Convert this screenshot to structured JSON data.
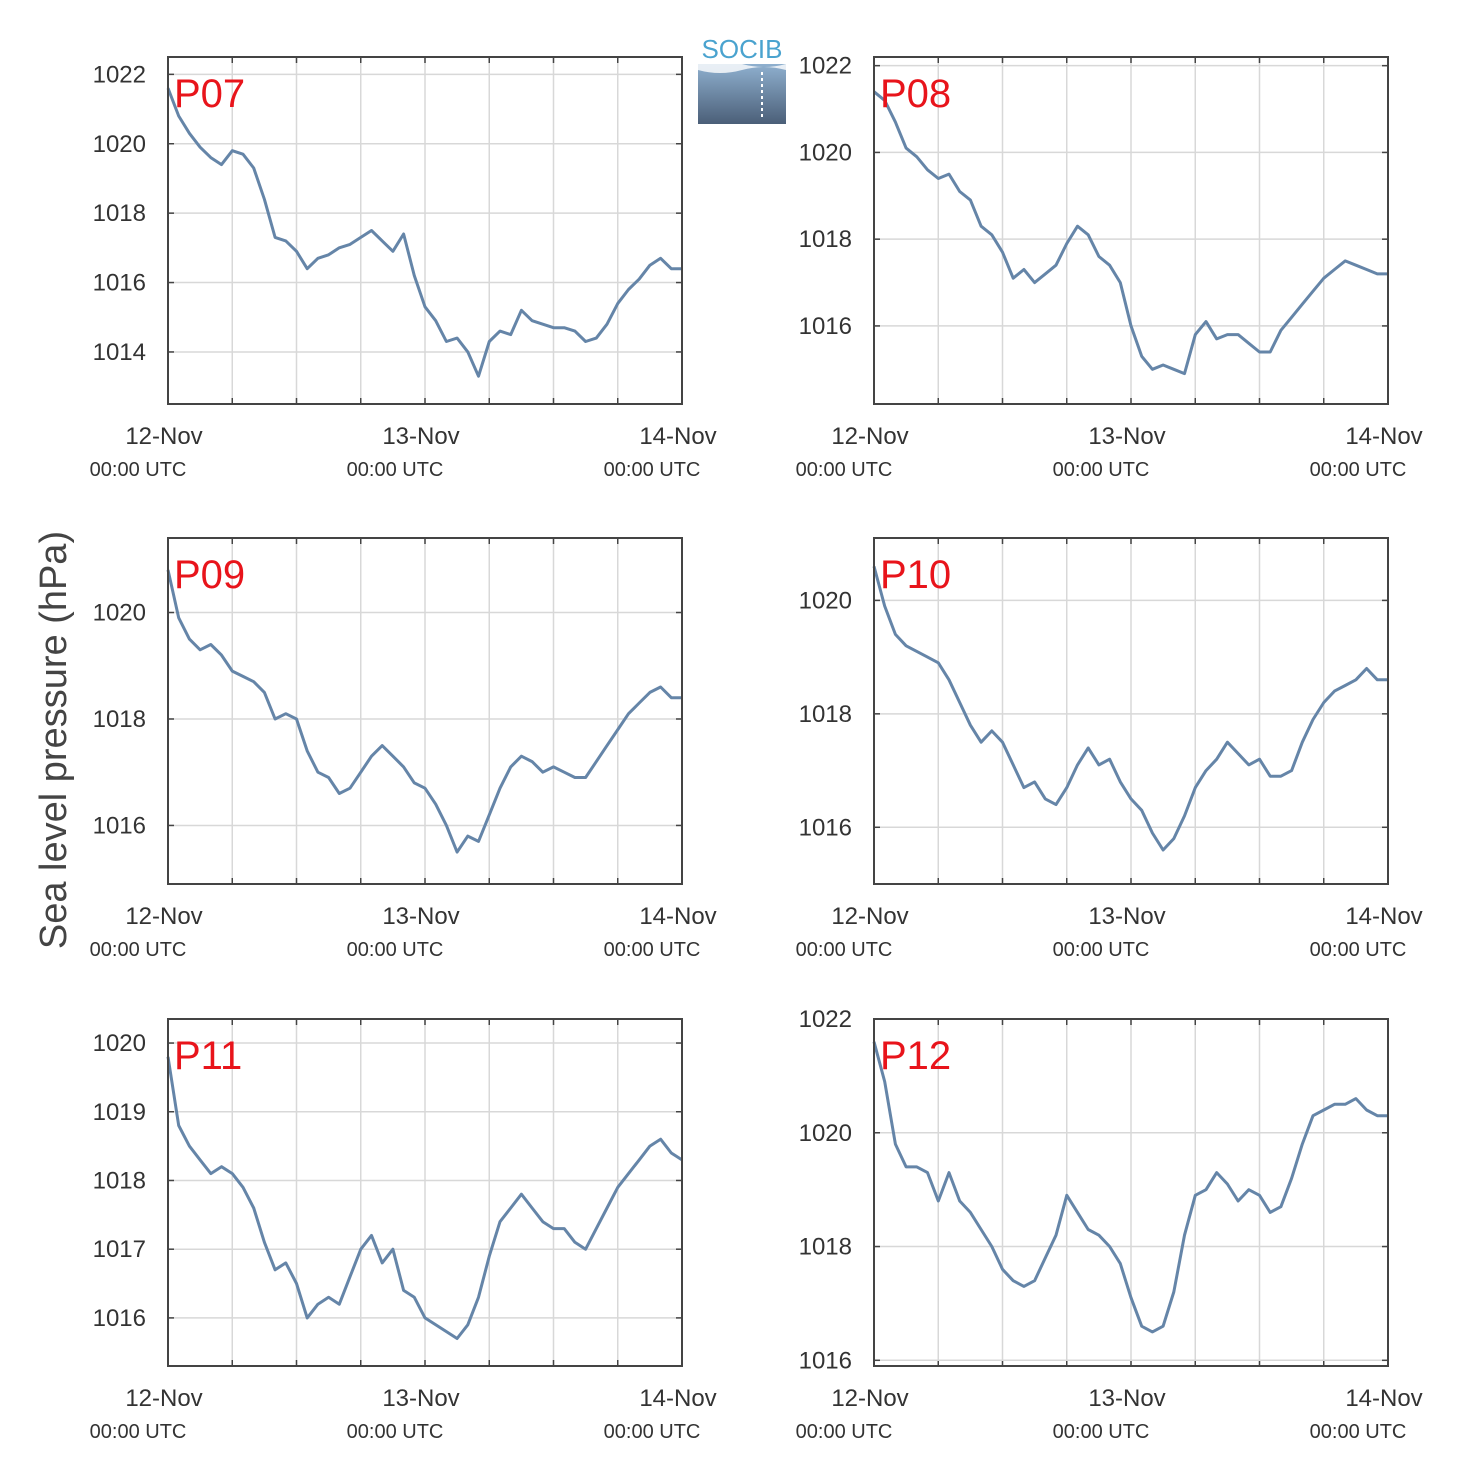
{
  "figure": {
    "ylabel": "Sea level pressure (hPa)",
    "logo_text": "SOCIB",
    "colors": {
      "line": "#6585a8",
      "panel_label": "#e8141b",
      "frame": "#444444",
      "grid": "#d8d8d8",
      "logo_text": "#4aa3cf"
    }
  },
  "chart_data": [
    {
      "type": "line",
      "title": "P07",
      "ylabel": "Sea level pressure (hPa)",
      "x_unit": "hours since 12-Nov 00:00 UTC",
      "xlim": [
        0,
        48
      ],
      "ylim": [
        1012.5,
        1022.5
      ],
      "xticks": [
        {
          "x": 0,
          "date": "12-Nov",
          "time": "00:00 UTC"
        },
        {
          "x": 24,
          "date": "13-Nov",
          "time": "00:00 UTC"
        },
        {
          "x": 48,
          "date": "14-Nov",
          "time": "00:00 UTC"
        }
      ],
      "yticks": [
        1014,
        1016,
        1018,
        1020,
        1022
      ],
      "grid": true,
      "x": [
        0,
        1,
        2,
        3,
        4,
        5,
        6,
        7,
        8,
        9,
        10,
        11,
        12,
        13,
        14,
        15,
        16,
        17,
        18,
        19,
        20,
        21,
        22,
        23,
        24,
        25,
        26,
        27,
        28,
        29,
        30,
        31,
        32,
        33,
        34,
        35,
        36,
        37,
        38,
        39,
        40,
        41,
        42,
        43,
        44,
        45,
        46,
        47,
        48
      ],
      "values": [
        1021.6,
        1020.8,
        1020.3,
        1019.9,
        1019.6,
        1019.4,
        1019.8,
        1019.7,
        1019.3,
        1018.4,
        1017.3,
        1017.2,
        1016.9,
        1016.4,
        1016.7,
        1016.8,
        1017.0,
        1017.1,
        1017.3,
        1017.5,
        1017.2,
        1016.9,
        1017.4,
        1016.2,
        1015.3,
        1014.9,
        1014.3,
        1014.4,
        1014.0,
        1013.3,
        1014.3,
        1014.6,
        1014.5,
        1015.2,
        1014.9,
        1014.8,
        1014.7,
        1014.7,
        1014.6,
        1014.3,
        1014.4,
        1014.8,
        1015.4,
        1015.8,
        1016.1,
        1016.5,
        1016.7,
        1016.4,
        1016.4
      ]
    },
    {
      "type": "line",
      "title": "P08",
      "ylabel": "Sea level pressure (hPa)",
      "x_unit": "hours since 12-Nov 00:00 UTC",
      "xlim": [
        0,
        48
      ],
      "ylim": [
        1014.2,
        1022.2
      ],
      "xticks": [
        {
          "x": 0,
          "date": "12-Nov",
          "time": "00:00 UTC"
        },
        {
          "x": 24,
          "date": "13-Nov",
          "time": "00:00 UTC"
        },
        {
          "x": 48,
          "date": "14-Nov",
          "time": "00:00 UTC"
        }
      ],
      "yticks": [
        1016,
        1018,
        1020,
        1022
      ],
      "grid": true,
      "x": [
        0,
        1,
        2,
        3,
        4,
        5,
        6,
        7,
        8,
        9,
        10,
        11,
        12,
        13,
        14,
        15,
        16,
        17,
        18,
        19,
        20,
        21,
        22,
        23,
        24,
        25,
        26,
        27,
        28,
        29,
        30,
        31,
        32,
        33,
        34,
        35,
        36,
        37,
        38,
        39,
        40,
        41,
        42,
        43,
        44,
        45,
        46,
        47,
        48
      ],
      "values": [
        1021.4,
        1021.2,
        1020.7,
        1020.1,
        1019.9,
        1019.6,
        1019.4,
        1019.5,
        1019.1,
        1018.9,
        1018.3,
        1018.1,
        1017.7,
        1017.1,
        1017.3,
        1017.0,
        1017.2,
        1017.4,
        1017.9,
        1018.3,
        1018.1,
        1017.6,
        1017.4,
        1017.0,
        1016.0,
        1015.3,
        1015.0,
        1015.1,
        1015.0,
        1014.9,
        1015.8,
        1016.1,
        1015.7,
        1015.8,
        1015.8,
        1015.6,
        1015.4,
        1015.4,
        1015.9,
        1016.2,
        1016.5,
        1016.8,
        1017.1,
        1017.3,
        1017.5,
        1017.4,
        1017.3,
        1017.2,
        1017.2
      ]
    },
    {
      "type": "line",
      "title": "P09",
      "ylabel": "Sea level pressure (hPa)",
      "x_unit": "hours since 12-Nov 00:00 UTC",
      "xlim": [
        0,
        48
      ],
      "ylim": [
        1014.9,
        1021.4
      ],
      "xticks": [
        {
          "x": 0,
          "date": "12-Nov",
          "time": "00:00 UTC"
        },
        {
          "x": 24,
          "date": "13-Nov",
          "time": "00:00 UTC"
        },
        {
          "x": 48,
          "date": "14-Nov",
          "time": "00:00 UTC"
        }
      ],
      "yticks": [
        1016,
        1018,
        1020
      ],
      "grid": true,
      "x": [
        0,
        1,
        2,
        3,
        4,
        5,
        6,
        7,
        8,
        9,
        10,
        11,
        12,
        13,
        14,
        15,
        16,
        17,
        18,
        19,
        20,
        21,
        22,
        23,
        24,
        25,
        26,
        27,
        28,
        29,
        30,
        31,
        32,
        33,
        34,
        35,
        36,
        37,
        38,
        39,
        40,
        41,
        42,
        43,
        44,
        45,
        46,
        47,
        48
      ],
      "values": [
        1020.8,
        1019.9,
        1019.5,
        1019.3,
        1019.4,
        1019.2,
        1018.9,
        1018.8,
        1018.7,
        1018.5,
        1018.0,
        1018.1,
        1018.0,
        1017.4,
        1017.0,
        1016.9,
        1016.6,
        1016.7,
        1017.0,
        1017.3,
        1017.5,
        1017.3,
        1017.1,
        1016.8,
        1016.7,
        1016.4,
        1016.0,
        1015.5,
        1015.8,
        1015.7,
        1016.2,
        1016.7,
        1017.1,
        1017.3,
        1017.2,
        1017.0,
        1017.1,
        1017.0,
        1016.9,
        1016.9,
        1017.2,
        1017.5,
        1017.8,
        1018.1,
        1018.3,
        1018.5,
        1018.6,
        1018.4,
        1018.4
      ]
    },
    {
      "type": "line",
      "title": "P10",
      "ylabel": "Sea level pressure (hPa)",
      "x_unit": "hours since 12-Nov 00:00 UTC",
      "xlim": [
        0,
        48
      ],
      "ylim": [
        1015.0,
        1021.1
      ],
      "xticks": [
        {
          "x": 0,
          "date": "12-Nov",
          "time": "00:00 UTC"
        },
        {
          "x": 24,
          "date": "13-Nov",
          "time": "00:00 UTC"
        },
        {
          "x": 48,
          "date": "14-Nov",
          "time": "00:00 UTC"
        }
      ],
      "yticks": [
        1016,
        1018,
        1020
      ],
      "grid": true,
      "x": [
        0,
        1,
        2,
        3,
        4,
        5,
        6,
        7,
        8,
        9,
        10,
        11,
        12,
        13,
        14,
        15,
        16,
        17,
        18,
        19,
        20,
        21,
        22,
        23,
        24,
        25,
        26,
        27,
        28,
        29,
        30,
        31,
        32,
        33,
        34,
        35,
        36,
        37,
        38,
        39,
        40,
        41,
        42,
        43,
        44,
        45,
        46,
        47,
        48
      ],
      "values": [
        1020.6,
        1019.9,
        1019.4,
        1019.2,
        1019.1,
        1019.0,
        1018.9,
        1018.6,
        1018.2,
        1017.8,
        1017.5,
        1017.7,
        1017.5,
        1017.1,
        1016.7,
        1016.8,
        1016.5,
        1016.4,
        1016.7,
        1017.1,
        1017.4,
        1017.1,
        1017.2,
        1016.8,
        1016.5,
        1016.3,
        1015.9,
        1015.6,
        1015.8,
        1016.2,
        1016.7,
        1017.0,
        1017.2,
        1017.5,
        1017.3,
        1017.1,
        1017.2,
        1016.9,
        1016.9,
        1017.0,
        1017.5,
        1017.9,
        1018.2,
        1018.4,
        1018.5,
        1018.6,
        1018.8,
        1018.6,
        1018.6
      ]
    },
    {
      "type": "line",
      "title": "P11",
      "ylabel": "Sea level pressure (hPa)",
      "x_unit": "hours since 12-Nov 00:00 UTC",
      "xlim": [
        0,
        48
      ],
      "ylim": [
        1015.3,
        1020.35
      ],
      "xticks": [
        {
          "x": 0,
          "date": "12-Nov",
          "time": "00:00 UTC"
        },
        {
          "x": 24,
          "date": "13-Nov",
          "time": "00:00 UTC"
        },
        {
          "x": 48,
          "date": "14-Nov",
          "time": "00:00 UTC"
        }
      ],
      "yticks": [
        1016,
        1017,
        1018,
        1019,
        1020
      ],
      "grid": true,
      "x": [
        0,
        1,
        2,
        3,
        4,
        5,
        6,
        7,
        8,
        9,
        10,
        11,
        12,
        13,
        14,
        15,
        16,
        17,
        18,
        19,
        20,
        21,
        22,
        23,
        24,
        25,
        26,
        27,
        28,
        29,
        30,
        31,
        32,
        33,
        34,
        35,
        36,
        37,
        38,
        39,
        40,
        41,
        42,
        43,
        44,
        45,
        46,
        47,
        48
      ],
      "values": [
        1019.8,
        1018.8,
        1018.5,
        1018.3,
        1018.1,
        1018.2,
        1018.1,
        1017.9,
        1017.6,
        1017.1,
        1016.7,
        1016.8,
        1016.5,
        1016.0,
        1016.2,
        1016.3,
        1016.2,
        1016.6,
        1017.0,
        1017.2,
        1016.8,
        1017.0,
        1016.4,
        1016.3,
        1016.0,
        1015.9,
        1015.8,
        1015.7,
        1015.9,
        1016.3,
        1016.9,
        1017.4,
        1017.6,
        1017.8,
        1017.6,
        1017.4,
        1017.3,
        1017.3,
        1017.1,
        1017.0,
        1017.3,
        1017.6,
        1017.9,
        1018.1,
        1018.3,
        1018.5,
        1018.6,
        1018.4,
        1018.3
      ]
    },
    {
      "type": "line",
      "title": "P12",
      "ylabel": "Sea level pressure (hPa)",
      "x_unit": "hours since 12-Nov 00:00 UTC",
      "xlim": [
        0,
        48
      ],
      "ylim": [
        1015.9,
        1022.0
      ],
      "xticks": [
        {
          "x": 0,
          "date": "12-Nov",
          "time": "00:00 UTC"
        },
        {
          "x": 24,
          "date": "13-Nov",
          "time": "00:00 UTC"
        },
        {
          "x": 48,
          "date": "14-Nov",
          "time": "00:00 UTC"
        }
      ],
      "yticks": [
        1016,
        1018,
        1020,
        1022
      ],
      "grid": true,
      "x": [
        0,
        1,
        2,
        3,
        4,
        5,
        6,
        7,
        8,
        9,
        10,
        11,
        12,
        13,
        14,
        15,
        16,
        17,
        18,
        19,
        20,
        21,
        22,
        23,
        24,
        25,
        26,
        27,
        28,
        29,
        30,
        31,
        32,
        33,
        34,
        35,
        36,
        37,
        38,
        39,
        40,
        41,
        42,
        43,
        44,
        45,
        46,
        47,
        48
      ],
      "values": [
        1021.6,
        1020.9,
        1019.8,
        1019.4,
        1019.4,
        1019.3,
        1018.8,
        1019.3,
        1018.8,
        1018.6,
        1018.3,
        1018.0,
        1017.6,
        1017.4,
        1017.3,
        1017.4,
        1017.8,
        1018.2,
        1018.9,
        1018.6,
        1018.3,
        1018.2,
        1018.0,
        1017.7,
        1017.1,
        1016.6,
        1016.5,
        1016.6,
        1017.2,
        1018.2,
        1018.9,
        1019.0,
        1019.3,
        1019.1,
        1018.8,
        1019.0,
        1018.9,
        1018.6,
        1018.7,
        1019.2,
        1019.8,
        1020.3,
        1020.4,
        1020.5,
        1020.5,
        1020.6,
        1020.4,
        1020.3,
        1020.3
      ]
    }
  ]
}
